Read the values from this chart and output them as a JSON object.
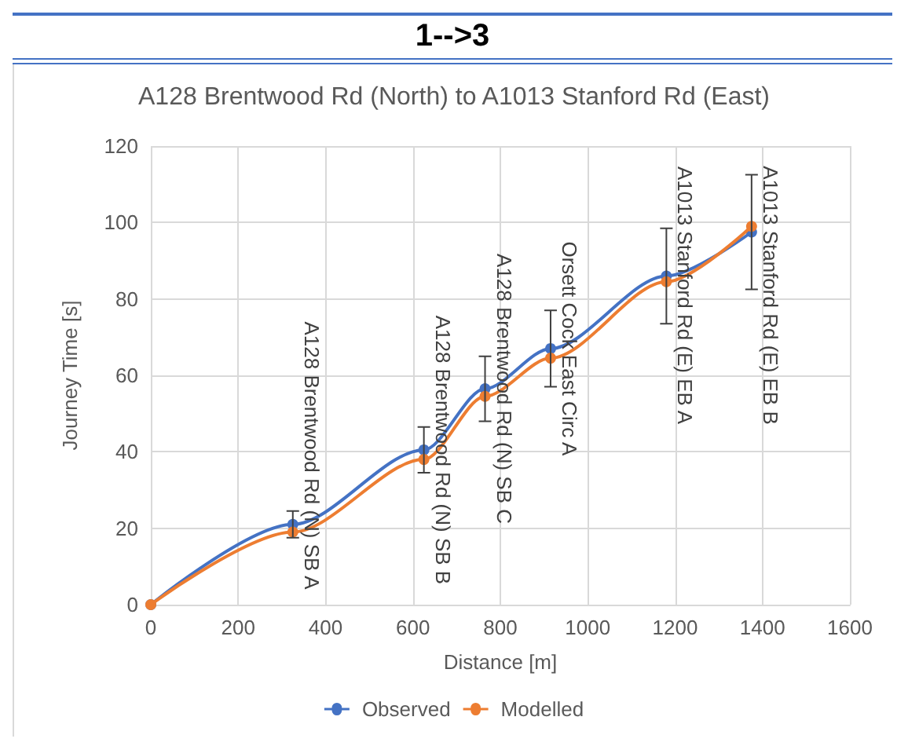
{
  "chart_data": {
    "type": "line",
    "title": "1-->3",
    "subtitle": "A128 Brentwood Rd (North) to A1013 Stanford Rd (East)",
    "xlabel": "Distance [m]",
    "ylabel": "Journey Time [s]",
    "x": [
      0,
      325,
      625,
      765,
      915,
      1180,
      1375
    ],
    "series": [
      {
        "name": "Observed",
        "color": "#4472c4",
        "values": [
          0,
          21,
          40.5,
          56.5,
          67,
          86,
          97.5
        ],
        "errors": [
          null,
          3.5,
          6,
          8.5,
          10,
          12.5,
          15
        ]
      },
      {
        "name": "Modelled",
        "color": "#ed7d31",
        "values": [
          0,
          19,
          38,
          54.5,
          64.5,
          84.5,
          99
        ]
      }
    ],
    "annotations": [
      {
        "text": "A128 Brentwood Rd (N) SB A",
        "x": 325,
        "y": 21
      },
      {
        "text": "A128 Brentwood Rd (N) SB B",
        "x": 625,
        "y": 40.5
      },
      {
        "text": "A128 Brentwood Rd (N) SB C",
        "x": 765,
        "y": 56.5
      },
      {
        "text": "Orsett Cock East Circ A",
        "x": 915,
        "y": 67
      },
      {
        "text": "A1013 Stanford Rd (E) EB A",
        "x": 1180,
        "y": 86
      },
      {
        "text": "A1013 Stanford Rd (E) EB B",
        "x": 1375,
        "y": 97.5
      }
    ],
    "xlim": [
      0,
      1600
    ],
    "xticks": [
      0,
      200,
      400,
      600,
      800,
      1000,
      1200,
      1400,
      1600
    ],
    "ylim": [
      0,
      120
    ],
    "yticks": [
      0,
      20,
      40,
      60,
      80,
      100,
      120
    ],
    "grid": true,
    "legend": "bottom",
    "marker": "circle",
    "line_style": "solid"
  }
}
